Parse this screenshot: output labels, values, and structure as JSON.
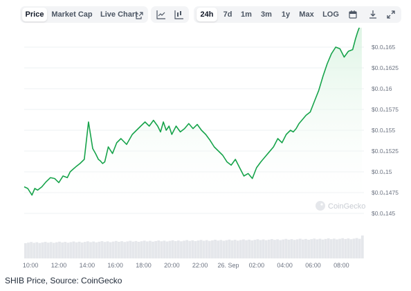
{
  "toolbar": {
    "tabs": [
      "Price",
      "Market Cap",
      "Live Chart"
    ],
    "chart_types": [
      "line-chart-icon",
      "candlestick-icon"
    ],
    "ranges": [
      "24h",
      "7d",
      "1m",
      "3m",
      "1y",
      "Max",
      "LOG"
    ],
    "active_tab": "Price",
    "active_range": "24h",
    "icons": [
      "external-link-icon",
      "calendar-icon",
      "download-icon",
      "expand-icon"
    ]
  },
  "caption": "SHIB Price, Source: CoinGecko",
  "watermark": "CoinGecko",
  "chart_data": {
    "type": "area",
    "colors": {
      "line": "#16a34a",
      "fill_top": "#d7f2df",
      "volume": "#e5e7eb",
      "grid": "#eef0f3",
      "text": "#6b7280"
    },
    "x_ticks": [
      "10:00",
      "12:00",
      "14:00",
      "16:00",
      "18:00",
      "20:00",
      "22:00",
      "26. Sep",
      "02:00",
      "04:00",
      "06:00",
      "08:00"
    ],
    "x_tick_hours": [
      0,
      2,
      4,
      6,
      8,
      10,
      12,
      14,
      16,
      18,
      20,
      22
    ],
    "x_range_hours": [
      -0.45,
      23.6
    ],
    "y_ticks": [
      {
        "label": "$0.0₄165",
        "value": 16.5
      },
      {
        "label": "$0.0₄1625",
        "value": 16.25
      },
      {
        "label": "$0.0₄16",
        "value": 16.0
      },
      {
        "label": "$0.0₄1575",
        "value": 15.75
      },
      {
        "label": "$0.0₄155",
        "value": 15.5
      },
      {
        "label": "$0.0₄1525",
        "value": 15.25
      },
      {
        "label": "$0.0₄15",
        "value": 15.0
      },
      {
        "label": "$0.0₄1475",
        "value": 14.75
      },
      {
        "label": "$0.0₄145",
        "value": 14.5
      }
    ],
    "y_unit_note": "values in units of $0.000001 (e.g. 16.5 = $0.0000165)",
    "series": [
      {
        "x": [
          -0.45,
          -0.2,
          0.1,
          0.3,
          0.5,
          0.8,
          1.1,
          1.4,
          1.7,
          2.0,
          2.3,
          2.6,
          2.8,
          3.0,
          3.2,
          3.5,
          3.8,
          4.1,
          4.4,
          4.6,
          4.8,
          4.95,
          5.1,
          5.25,
          5.5,
          5.8,
          6.1,
          6.4,
          6.8,
          7.2,
          7.5,
          7.8,
          8.1,
          8.4,
          8.7,
          9.0,
          9.2,
          9.4,
          9.6,
          9.8,
          10.0,
          10.3,
          10.6,
          10.9,
          11.2,
          11.5,
          11.8,
          12.1,
          12.4,
          12.7,
          13.0,
          13.3,
          13.6,
          13.9,
          14.2,
          14.5,
          14.8,
          15.1,
          15.4,
          15.7,
          16.0,
          16.3,
          16.6,
          16.9,
          17.2,
          17.5,
          17.8,
          18.1,
          18.4,
          18.6,
          18.8,
          19.0,
          19.2,
          19.5,
          19.8,
          20.1,
          20.4,
          20.7,
          21.0,
          21.3,
          21.6,
          21.9,
          22.2,
          22.5,
          22.8,
          23.0,
          23.15,
          23.3,
          23.45
        ],
        "y": [
          14.82,
          14.8,
          14.72,
          14.8,
          14.78,
          14.82,
          14.88,
          14.93,
          14.92,
          14.87,
          14.95,
          14.93,
          15.0,
          15.03,
          15.06,
          15.1,
          15.15,
          15.6,
          15.28,
          15.22,
          15.15,
          15.13,
          15.1,
          15.12,
          15.3,
          15.22,
          15.35,
          15.4,
          15.33,
          15.45,
          15.5,
          15.55,
          15.6,
          15.55,
          15.62,
          15.55,
          15.48,
          15.6,
          15.5,
          15.55,
          15.45,
          15.55,
          15.48,
          15.52,
          15.58,
          15.52,
          15.57,
          15.5,
          15.45,
          15.38,
          15.3,
          15.25,
          15.2,
          15.12,
          15.08,
          15.15,
          15.05,
          14.95,
          14.98,
          14.92,
          15.05,
          15.12,
          15.18,
          15.24,
          15.3,
          15.4,
          15.35,
          15.45,
          15.5,
          15.48,
          15.52,
          15.58,
          15.62,
          15.68,
          15.72,
          15.85,
          15.98,
          16.15,
          16.3,
          16.42,
          16.5,
          16.48,
          16.38,
          16.45,
          16.47,
          16.6,
          16.68,
          16.75,
          16.82
        ]
      }
    ],
    "volume_shown": true
  }
}
